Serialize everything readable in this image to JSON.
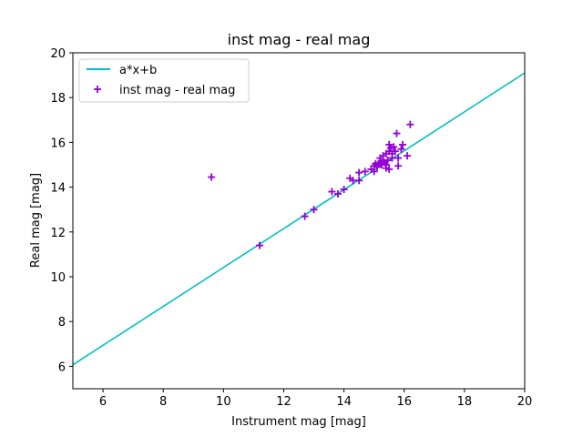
{
  "chart_data": {
    "type": "scatter",
    "title": "inst mag - real mag",
    "xlabel": "Instrument mag [mag]",
    "ylabel": "Real mag [mag]",
    "xlim": [
      5,
      20
    ],
    "ylim": [
      5,
      20
    ],
    "xticks": [
      6,
      8,
      10,
      12,
      14,
      16,
      18,
      20
    ],
    "yticks": [
      6,
      8,
      10,
      12,
      14,
      16,
      18,
      20
    ],
    "xtick_labels": [
      "6",
      "8",
      "10",
      "12",
      "14",
      "16",
      "18",
      "20"
    ],
    "ytick_labels": [
      "6",
      "8",
      "10",
      "12",
      "14",
      "16",
      "18",
      "20"
    ],
    "grid": false,
    "legend_position": "top-left",
    "series": [
      {
        "name": "a*x+b",
        "kind": "line",
        "color": "#00bfbf",
        "x": [
          5,
          20
        ],
        "y": [
          6.07,
          19.1
        ]
      },
      {
        "name": "inst mag - real mag",
        "kind": "scatter",
        "marker": "plus",
        "color": "#9400d3",
        "x": [
          9.6,
          11.2,
          12.7,
          13.0,
          13.6,
          13.8,
          14.0,
          14.2,
          14.3,
          14.5,
          14.5,
          14.7,
          14.9,
          15.0,
          15.0,
          15.05,
          15.1,
          15.15,
          15.2,
          15.25,
          15.3,
          15.3,
          15.35,
          15.4,
          15.4,
          15.45,
          15.5,
          15.5,
          15.5,
          15.55,
          15.6,
          15.6,
          15.65,
          15.7,
          15.75,
          15.8,
          15.8,
          15.9,
          15.95,
          16.1,
          16.2,
          15.2,
          15.4
        ],
        "y": [
          14.45,
          11.4,
          12.7,
          13.0,
          13.8,
          13.7,
          13.9,
          14.4,
          14.3,
          14.65,
          14.3,
          14.7,
          14.8,
          14.7,
          14.95,
          15.05,
          14.9,
          15.05,
          15.1,
          15.0,
          15.2,
          15.4,
          15.1,
          15.5,
          14.85,
          15.2,
          15.9,
          15.6,
          14.8,
          15.75,
          15.3,
          15.5,
          15.8,
          15.6,
          16.4,
          14.95,
          15.3,
          15.7,
          15.9,
          15.4,
          16.8,
          15.3,
          15.0
        ]
      }
    ]
  }
}
